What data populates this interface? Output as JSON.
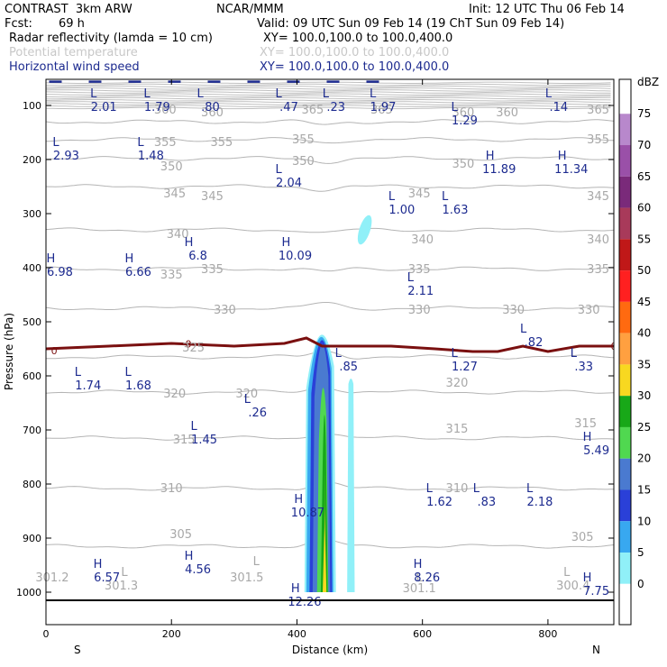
{
  "header": {
    "model": "CONTRAST  3km ARW",
    "org": "NCAR/MMM",
    "init": "Init: 12 UTC Thu 06 Feb 14",
    "fcst_label": "Fcst:",
    "fcst_value": "69 h",
    "valid": "Valid: 09 UTC Sun 09 Feb 14 (19 ChT Sun 09 Feb 14)",
    "fields": [
      {
        "name": "Radar reflectivity (lamda = 10 cm)",
        "xy": "XY= 100.0,100.0 to 100.0,400.0",
        "color": "#000000"
      },
      {
        "name": "Potential temperature",
        "xy": "XY= 100.0,100.0 to 100.0,400.0",
        "color": "#c8c8c8"
      },
      {
        "name": "Horizontal wind speed",
        "xy": "XY= 100.0,100.0 to 100.0,400.0",
        "color": "#1c2a8f"
      }
    ]
  },
  "chart_data": {
    "type": "cross-section",
    "xlabel": "Distance (km)",
    "ylabel": "Pressure (hPa)",
    "x_ticks": [
      "0",
      "200",
      "400",
      "600",
      "800"
    ],
    "x_tick_values": [
      0,
      200,
      400,
      600,
      800
    ],
    "x_end_labels": {
      "left": "S",
      "right": "N"
    },
    "y_ticks": [
      "100",
      "200",
      "300",
      "400",
      "500",
      "600",
      "700",
      "800",
      "900",
      "1000"
    ],
    "y_tick_values": [
      100,
      200,
      300,
      400,
      500,
      600,
      700,
      800,
      900,
      1000
    ],
    "xlim": [
      0,
      905
    ],
    "ylim": [
      1055,
      50
    ],
    "colorbar": {
      "unit": "dBZ",
      "levels": [
        "75",
        "70",
        "65",
        "60",
        "55",
        "50",
        "45",
        "40",
        "35",
        "30",
        "25",
        "20",
        "15",
        "10",
        "5",
        "0"
      ],
      "colors": [
        "#b888cc",
        "#9a50a8",
        "#7a2a7a",
        "#a83a5a",
        "#c01818",
        "#ff2020",
        "#ff6a10",
        "#ffa040",
        "#f8d820",
        "#18a818",
        "#50d850",
        "#4a7ad0",
        "#2a40d8",
        "#38a8f0",
        "#90f0f8",
        "#ffffff"
      ]
    },
    "theta_contours": [
      {
        "value": 360,
        "p": 130
      },
      {
        "value": 355,
        "p": 163
      },
      {
        "value": 350,
        "p": 198
      },
      {
        "value": 345,
        "p": 250
      },
      {
        "value": 340,
        "p": 330
      },
      {
        "value": 335,
        "p": 402
      },
      {
        "value": 330,
        "p": 475
      },
      {
        "value": 325,
        "p": 565
      },
      {
        "value": 320,
        "p": 630
      },
      {
        "value": 315,
        "p": 715
      },
      {
        "value": 310,
        "p": 808
      },
      {
        "value": 305,
        "p": 915
      }
    ],
    "theta_labels": [
      {
        "text": "360",
        "x": 190,
        "p": 115
      },
      {
        "text": "360",
        "x": 265,
        "p": 120
      },
      {
        "text": "365",
        "x": 425,
        "p": 115
      },
      {
        "text": "365",
        "x": 535,
        "p": 115
      },
      {
        "text": "360",
        "x": 665,
        "p": 120
      },
      {
        "text": "360",
        "x": 735,
        "p": 120
      },
      {
        "text": "365",
        "x": 880,
        "p": 115
      },
      {
        "text": "355",
        "x": 190,
        "p": 175
      },
      {
        "text": "355",
        "x": 280,
        "p": 175
      },
      {
        "text": "355",
        "x": 410,
        "p": 170
      },
      {
        "text": "355",
        "x": 880,
        "p": 170
      },
      {
        "text": "350",
        "x": 200,
        "p": 220
      },
      {
        "text": "350",
        "x": 410,
        "p": 210
      },
      {
        "text": "350",
        "x": 665,
        "p": 215
      },
      {
        "text": "345",
        "x": 205,
        "p": 270
      },
      {
        "text": "345",
        "x": 265,
        "p": 275
      },
      {
        "text": "345",
        "x": 595,
        "p": 270
      },
      {
        "text": "345",
        "x": 880,
        "p": 275
      },
      {
        "text": "340",
        "x": 210,
        "p": 345
      },
      {
        "text": "340",
        "x": 600,
        "p": 355
      },
      {
        "text": "340",
        "x": 880,
        "p": 355
      },
      {
        "text": "335",
        "x": 200,
        "p": 420
      },
      {
        "text": "335",
        "x": 265,
        "p": 410
      },
      {
        "text": "335",
        "x": 595,
        "p": 410
      },
      {
        "text": "335",
        "x": 880,
        "p": 410
      },
      {
        "text": "330",
        "x": 285,
        "p": 485
      },
      {
        "text": "330",
        "x": 595,
        "p": 485
      },
      {
        "text": "330",
        "x": 745,
        "p": 485
      },
      {
        "text": "330",
        "x": 865,
        "p": 485
      },
      {
        "text": "325",
        "x": 235,
        "p": 555
      },
      {
        "text": "320",
        "x": 205,
        "p": 640
      },
      {
        "text": "320",
        "x": 320,
        "p": 640
      },
      {
        "text": "320",
        "x": 655,
        "p": 620
      },
      {
        "text": "315",
        "x": 220,
        "p": 725
      },
      {
        "text": "315",
        "x": 655,
        "p": 705
      },
      {
        "text": "315",
        "x": 860,
        "p": 695
      },
      {
        "text": "310",
        "x": 200,
        "p": 815
      },
      {
        "text": "310",
        "x": 655,
        "p": 815
      },
      {
        "text": "305",
        "x": 215,
        "p": 900
      },
      {
        "text": "305",
        "x": 855,
        "p": 905
      },
      {
        "text": "301.2",
        "x": 10,
        "p": 980
      },
      {
        "text": "L",
        "x": 125,
        "p": 970
      },
      {
        "text": "301.3",
        "x": 120,
        "p": 995
      },
      {
        "text": "L",
        "x": 335,
        "p": 950
      },
      {
        "text": "301.5",
        "x": 320,
        "p": 980
      },
      {
        "text": "L",
        "x": 595,
        "p": 980
      },
      {
        "text": "301.1",
        "x": 595,
        "p": 1000
      },
      {
        "text": "L",
        "x": 830,
        "p": 970
      },
      {
        "text": "300.4",
        "x": 840,
        "p": 995
      }
    ],
    "wind_labels": [
      {
        "type": "L",
        "value": "2.01",
        "x": 85,
        "p": 85
      },
      {
        "type": "L",
        "value": "1.79",
        "x": 170,
        "p": 85
      },
      {
        "type": "L",
        "value": ".80",
        "x": 255,
        "p": 85
      },
      {
        "type": "L",
        "value": ".47",
        "x": 380,
        "p": 85
      },
      {
        "type": "L",
        "value": ".23",
        "x": 455,
        "p": 85
      },
      {
        "type": "L",
        "value": "1.97",
        "x": 530,
        "p": 85
      },
      {
        "type": "L",
        "value": "1.29",
        "x": 660,
        "p": 110
      },
      {
        "type": "L",
        "value": ".14",
        "x": 810,
        "p": 85
      },
      {
        "type": "L",
        "value": "2.93",
        "x": 25,
        "p": 175
      },
      {
        "type": "L",
        "value": "1.48",
        "x": 160,
        "p": 175
      },
      {
        "type": "L",
        "value": "2.04",
        "x": 380,
        "p": 225
      },
      {
        "type": "H",
        "value": "11.89",
        "x": 715,
        "p": 200
      },
      {
        "type": "H",
        "value": "11.34",
        "x": 830,
        "p": 200
      },
      {
        "type": "L",
        "value": "1.00",
        "x": 560,
        "p": 275
      },
      {
        "type": "L",
        "value": "1.63",
        "x": 645,
        "p": 275
      },
      {
        "type": "H",
        "value": "6.98",
        "x": 15,
        "p": 390
      },
      {
        "type": "H",
        "value": "6.66",
        "x": 140,
        "p": 390
      },
      {
        "type": "H",
        "value": "6.8",
        "x": 235,
        "p": 360
      },
      {
        "type": "H",
        "value": "10.09",
        "x": 390,
        "p": 360
      },
      {
        "type": "L",
        "value": "2.11",
        "x": 590,
        "p": 425
      },
      {
        "type": "L",
        "value": ".82",
        "x": 770,
        "p": 520
      },
      {
        "type": "L",
        "value": ".85",
        "x": 475,
        "p": 565
      },
      {
        "type": "L",
        "value": "1.27",
        "x": 660,
        "p": 565
      },
      {
        "type": "L",
        "value": ".33",
        "x": 850,
        "p": 565
      },
      {
        "type": "L",
        "value": "1.74",
        "x": 60,
        "p": 600
      },
      {
        "type": "L",
        "value": "1.68",
        "x": 140,
        "p": 600
      },
      {
        "type": "L",
        "value": ".26",
        "x": 330,
        "p": 650
      },
      {
        "type": "L",
        "value": "1.45",
        "x": 245,
        "p": 700
      },
      {
        "type": "H",
        "value": "5.49",
        "x": 870,
        "p": 720
      },
      {
        "type": "L",
        "value": "1.62",
        "x": 620,
        "p": 815
      },
      {
        "type": "L",
        "value": ".83",
        "x": 695,
        "p": 815
      },
      {
        "type": "L",
        "value": "2.18",
        "x": 780,
        "p": 815
      },
      {
        "type": "H",
        "value": "10.87",
        "x": 410,
        "p": 835
      },
      {
        "type": "H",
        "value": "6.57",
        "x": 90,
        "p": 955
      },
      {
        "type": "H",
        "value": "4.56",
        "x": 235,
        "p": 940
      },
      {
        "type": "H",
        "value": "8.26",
        "x": 600,
        "p": 955
      },
      {
        "type": "H",
        "value": "7.75",
        "x": 870,
        "p": 980
      },
      {
        "type": "H",
        "value": "12.26",
        "x": 405,
        "p": 1000
      }
    ],
    "zero_line": {
      "label": "0",
      "points": [
        [
          0,
          550
        ],
        [
          100,
          545
        ],
        [
          200,
          540
        ],
        [
          300,
          545
        ],
        [
          380,
          540
        ],
        [
          415,
          530
        ],
        [
          440,
          545
        ],
        [
          470,
          545
        ],
        [
          550,
          545
        ],
        [
          620,
          550
        ],
        [
          680,
          555
        ],
        [
          720,
          555
        ],
        [
          760,
          545
        ],
        [
          800,
          555
        ],
        [
          850,
          545
        ],
        [
          905,
          545
        ]
      ]
    },
    "reflectivity_cell": {
      "x_center": 445,
      "p_top": 470,
      "p_bottom": 1000,
      "max_dbz": 35
    }
  }
}
